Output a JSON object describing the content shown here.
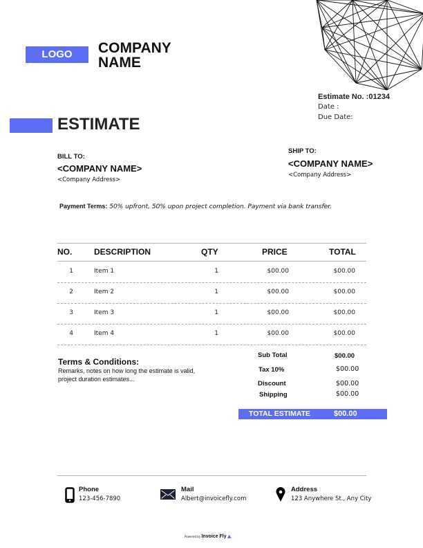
{
  "header": {
    "logo": "LOGO",
    "company_name": "COMPANY NAME",
    "title": "ESTIMATE"
  },
  "meta": {
    "estimate_no": "Estimate No. :01234",
    "date_label": "Date  :",
    "due_date_label": "Due Date:"
  },
  "bill_to": {
    "label": "BILL TO:",
    "name": "<COMPANY NAME>",
    "address": "<Company Address>"
  },
  "ship_to": {
    "label": "SHIP TO:",
    "name": "<COMPANY NAME>",
    "address": "<Company Address>"
  },
  "payment_terms": {
    "label": "Payment Terms:",
    "text": "50% upfront, 50% upon project completion. Payment via bank transfer."
  },
  "table": {
    "headers": [
      "NO.",
      "DESCRIPTION",
      "QTY",
      "PRICE",
      "TOTAL"
    ],
    "rows": [
      [
        "1",
        "Item  1",
        "1",
        "$00.00",
        "$00.00"
      ],
      [
        "2",
        "Item 2",
        "1",
        "$00.00",
        "$00.00"
      ],
      [
        "3",
        "Item 3",
        "1",
        "$00.00",
        "$00.00"
      ],
      [
        "4",
        "Item 4",
        "1",
        "$00.00",
        "$00.00"
      ]
    ]
  },
  "terms": {
    "title": "Terms & Conditions:",
    "line1": "Remarks, notes on how long the estimate is valid,",
    "line2": "project duration estimates..."
  },
  "totals": {
    "sub_total_label": "Sub Total",
    "sub_total": "$00.00",
    "tax_label": "Tax 10%",
    "tax": "$00.00",
    "discount_label": "Discount",
    "discount": "$00.00",
    "shipping_label": "Shipping",
    "shipping": "$00.00",
    "total_label": "TOTAL ESTIMATE",
    "total": "$00.00"
  },
  "footer": {
    "phone_label": "Phone",
    "phone": "123-456-7890",
    "mail_label": "Mail",
    "mail": "Albert@invoicefly.com",
    "address_label": "Address",
    "address": "123 Anywhere St., Any City",
    "powered_by": "Powered by",
    "brand": "Invoice Fly"
  },
  "colors": {
    "accent": "#5b6ef5",
    "rule": "#a9aee0"
  }
}
